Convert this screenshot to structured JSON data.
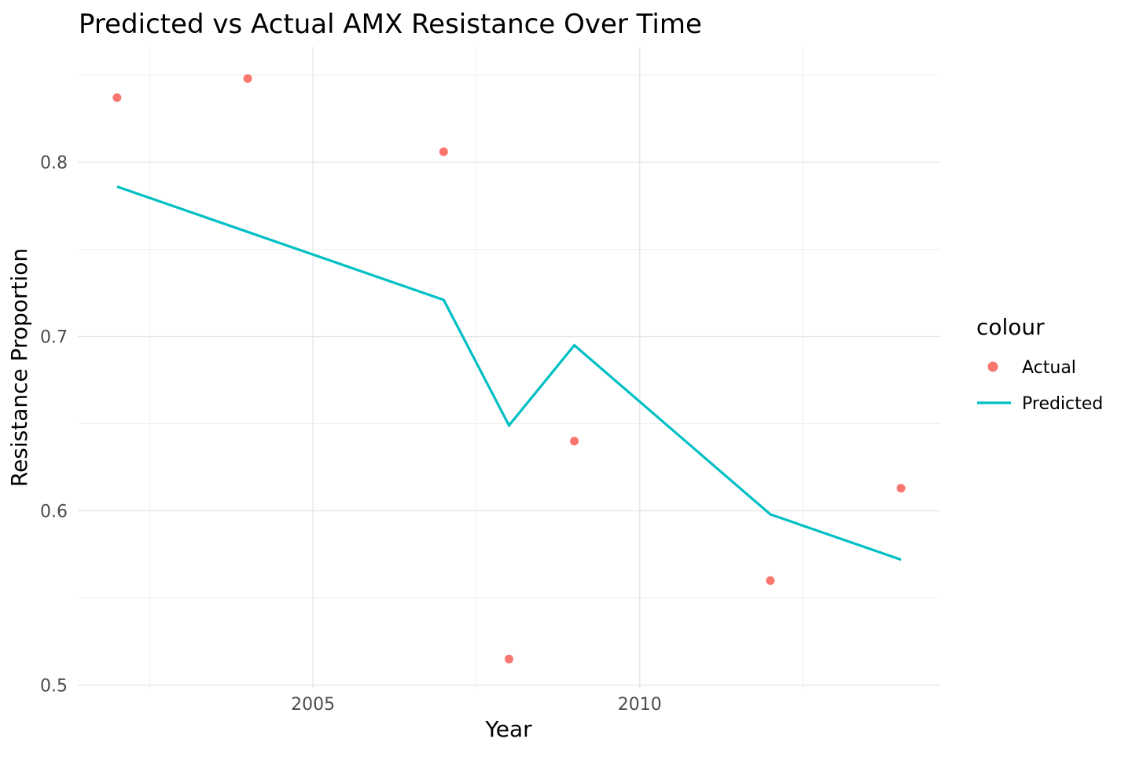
{
  "figure": {
    "background_color": "#ffffff",
    "panel_background_color": "#ffffff",
    "grid_major_color": "#e8e8e8",
    "grid_minor_color": "#efefef",
    "tick_label_color": "#4d4d4d",
    "text_color": "#000000"
  },
  "chart_data": {
    "type": "line",
    "title": "Predicted vs Actual AMX Resistance Over Time",
    "xlabel": "Year",
    "ylabel": "Resistance Proportion",
    "xlim": [
      2001.4,
      2014.6
    ],
    "ylim": [
      0.498,
      0.866
    ],
    "x_major_ticks": [
      2005,
      2010
    ],
    "x_tick_labels": [
      "2005",
      "2010"
    ],
    "x_minor_gridlines": [
      2002.5,
      2007.5,
      2012.5
    ],
    "y_major_ticks": [
      0.5,
      0.6,
      0.7,
      0.8
    ],
    "y_tick_labels": [
      "0.5",
      "0.6",
      "0.7",
      "0.8"
    ],
    "y_minor_gridlines": [
      0.55,
      0.65,
      0.75,
      0.85
    ],
    "grid": true,
    "legend_position": "right",
    "legend_title": "colour",
    "series": [
      {
        "name": "Actual",
        "type": "scatter",
        "color": "#F8766D",
        "marker": "circle",
        "x": [
          2002,
          2004,
          2007,
          2008,
          2009,
          2012,
          2014
        ],
        "y": [
          0.837,
          0.848,
          0.806,
          0.515,
          0.64,
          0.56,
          0.613
        ]
      },
      {
        "name": "Predicted",
        "type": "line",
        "color": "#00BFC4",
        "x": [
          2002,
          2007,
          2008,
          2009,
          2012,
          2014
        ],
        "y": [
          0.786,
          0.721,
          0.649,
          0.695,
          0.598,
          0.572
        ]
      }
    ]
  }
}
